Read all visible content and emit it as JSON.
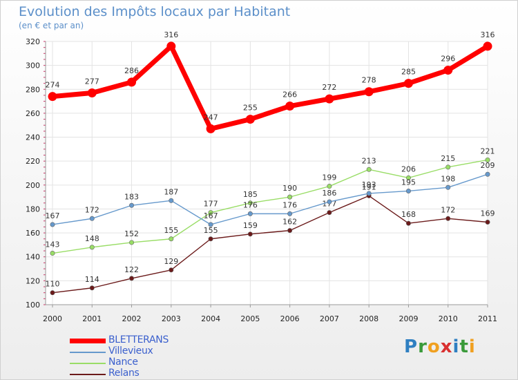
{
  "header": {
    "title": "Evolution des Impôts locaux par Habitant",
    "subtitle": "(en € et par an)"
  },
  "brand": {
    "logo_text": "Proxiti",
    "letters": [
      {
        "ch": "P",
        "color": "#2f7fc1"
      },
      {
        "ch": "r",
        "color": "#3a9a3a"
      },
      {
        "ch": "o",
        "color": "#f0a020"
      },
      {
        "ch": "x",
        "color": "#d93030"
      },
      {
        "ch": "i",
        "color": "#2f7fc1"
      },
      {
        "ch": "t",
        "color": "#3a9a3a"
      },
      {
        "ch": "i",
        "color": "#f0a020"
      }
    ]
  },
  "chart_data": {
    "type": "line",
    "title": "Evolution des Impôts locaux par Habitant",
    "subtitle": "(en € et par an)",
    "xlabel": "",
    "ylabel": "",
    "x": [
      "2000",
      "2001",
      "2002",
      "2003",
      "2004",
      "2005",
      "2006",
      "2007",
      "2008",
      "2009",
      "2010",
      "2011"
    ],
    "ylim": [
      100,
      320
    ],
    "yticks": [
      100,
      120,
      140,
      160,
      180,
      200,
      220,
      240,
      260,
      280,
      300,
      320
    ],
    "grid": true,
    "legend_position": "bottom-left",
    "series": [
      {
        "name": "BLETTERANS",
        "color": "#ff0000",
        "values": [
          274,
          277,
          286,
          316,
          247,
          255,
          266,
          272,
          278,
          285,
          296,
          316
        ]
      },
      {
        "name": "Villevieux",
        "color": "#6699cc",
        "values": [
          167,
          172,
          183,
          187,
          167,
          176,
          176,
          186,
          193,
          195,
          198,
          209
        ]
      },
      {
        "name": "Nance",
        "color": "#99dd66",
        "values": [
          143,
          148,
          152,
          155,
          177,
          185,
          190,
          199,
          213,
          206,
          215,
          221
        ]
      },
      {
        "name": "Relans",
        "color": "#6b1a1a",
        "values": [
          110,
          114,
          122,
          129,
          155,
          159,
          162,
          177,
          191,
          168,
          172,
          169
        ]
      }
    ]
  }
}
